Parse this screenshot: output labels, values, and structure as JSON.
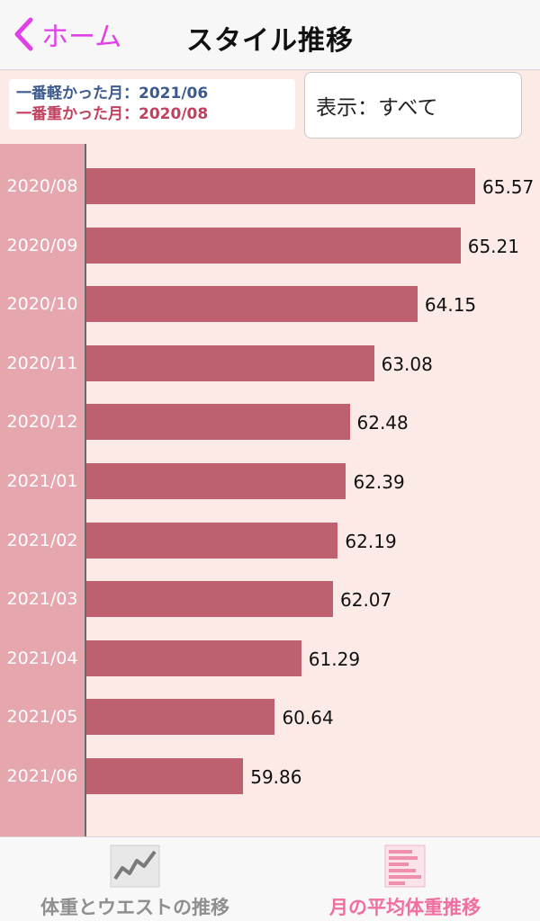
{
  "nav": {
    "back_label": "ホーム",
    "title": "スタイル推移"
  },
  "info": {
    "lightest_month": "一番軽かった月：2021/06",
    "heaviest_month": "一番重かった月：2020/08"
  },
  "display_select": {
    "value": "表示：すべて"
  },
  "chart_data": {
    "type": "bar",
    "orientation": "horizontal",
    "categories": [
      "2020/08",
      "2020/09",
      "2020/10",
      "2020/11",
      "2020/12",
      "2021/01",
      "2021/02",
      "2021/03",
      "2021/04",
      "2021/05",
      "2021/06"
    ],
    "values": [
      65.57,
      65.21,
      64.15,
      63.08,
      62.48,
      62.39,
      62.19,
      62.07,
      61.29,
      60.64,
      59.86
    ],
    "value_labels": [
      "65.57",
      "65.21",
      "64.15",
      "63.08",
      "62.48",
      "62.39",
      "62.19",
      "62.07",
      "61.29",
      "60.64",
      "59.86"
    ],
    "xlim": [
      56.0,
      65.57
    ],
    "grid": false,
    "colors": {
      "bar": "#be6070",
      "label_column": "#e5a6ae"
    }
  },
  "tabs": [
    {
      "label": "体重とウエストの推移",
      "icon": "line-chart-icon",
      "active": false
    },
    {
      "label": "月の平均体重推移",
      "icon": "bar-chart-icon",
      "active": true
    }
  ],
  "colors": {
    "accent": "#e040e8",
    "active_tab": "#f06ea0",
    "background": "#fbeae5"
  }
}
